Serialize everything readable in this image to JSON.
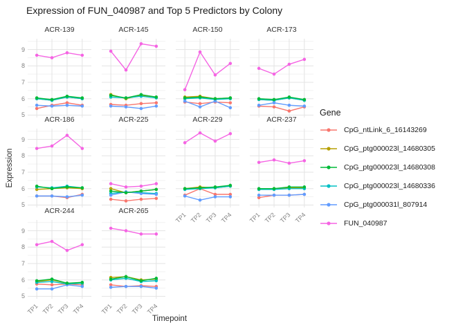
{
  "chart_data": {
    "type": "line",
    "title": "Expression of FUN_040987 and Top 5 Predictors by Colony",
    "xlabel": "Timepoint",
    "ylabel": "Expression",
    "x_categories": [
      "TP1",
      "TP2",
      "TP3",
      "TP4"
    ],
    "y_ticks": [
      5,
      6,
      7,
      8,
      9
    ],
    "ylim": [
      4.85,
      9.66
    ],
    "grid": true,
    "legend_title": "Gene",
    "legend_position": "right",
    "background_color": "#FFFFFF",
    "major_grid_color": "#E3E3E3",
    "minor_grid_color": "#F2F2F2",
    "series_meta": [
      {
        "name": "CpG_ntLink_6_16143269",
        "color": "#F8766D"
      },
      {
        "name": "CpG_ptg000023l_14680305",
        "color": "#B79F00"
      },
      {
        "name": "CpG_ptg000023l_14680308",
        "color": "#00BA38"
      },
      {
        "name": "CpG_ptg000023l_14680336",
        "color": "#00BFC4"
      },
      {
        "name": "CpG_ptg000031l_807914",
        "color": "#619CFF"
      },
      {
        "name": "FUN_040987",
        "color": "#F564E3"
      }
    ],
    "facets": [
      {
        "label": "ACR-139",
        "series": [
          [
            5.4,
            5.6,
            5.75,
            5.6
          ],
          [
            6.0,
            5.9,
            6.1,
            6.0
          ],
          [
            6.05,
            5.95,
            6.15,
            6.05
          ],
          [
            6.0,
            5.9,
            6.1,
            6.0
          ],
          [
            5.6,
            5.55,
            5.6,
            5.55
          ],
          [
            8.65,
            8.5,
            8.8,
            8.65
          ]
        ]
      },
      {
        "label": "ACR-145",
        "series": [
          [
            5.65,
            5.6,
            5.7,
            5.75
          ],
          [
            6.25,
            6.0,
            6.2,
            6.1
          ],
          [
            6.2,
            6.05,
            6.25,
            6.1
          ],
          [
            6.1,
            6.05,
            6.15,
            6.05
          ],
          [
            5.55,
            5.5,
            5.4,
            5.55
          ],
          [
            8.9,
            7.75,
            9.35,
            9.2
          ]
        ]
      },
      {
        "label": "ACR-150",
        "series": [
          [
            5.8,
            5.7,
            5.8,
            5.75
          ],
          [
            6.1,
            6.15,
            6.0,
            6.05
          ],
          [
            6.05,
            6.1,
            6.0,
            6.05
          ],
          [
            6.0,
            6.05,
            5.95,
            6.0
          ],
          [
            5.85,
            5.5,
            5.85,
            5.45
          ],
          [
            6.55,
            8.85,
            7.45,
            8.15
          ]
        ]
      },
      {
        "label": "ACR-173",
        "series": [
          [
            5.55,
            5.5,
            5.25,
            5.5
          ],
          [
            5.95,
            5.9,
            6.05,
            5.9
          ],
          [
            6.0,
            5.95,
            6.1,
            5.95
          ],
          [
            5.95,
            5.9,
            6.05,
            5.9
          ],
          [
            5.6,
            5.75,
            5.6,
            5.55
          ],
          [
            7.85,
            7.5,
            8.1,
            8.4
          ]
        ]
      },
      {
        "label": "ACR-186",
        "series": [
          [
            5.55,
            5.55,
            5.45,
            5.65
          ],
          [
            5.95,
            6.0,
            6.05,
            6.0
          ],
          [
            6.15,
            6.0,
            6.1,
            6.05
          ],
          [
            6.1,
            6.05,
            6.15,
            6.05
          ],
          [
            5.55,
            5.55,
            5.5,
            5.6
          ],
          [
            8.45,
            8.6,
            9.25,
            8.45
          ]
        ]
      },
      {
        "label": "ACR-225",
        "series": [
          [
            5.35,
            5.25,
            5.35,
            5.4
          ],
          [
            6.0,
            5.75,
            5.85,
            5.95
          ],
          [
            5.85,
            5.75,
            5.85,
            5.95
          ],
          [
            5.7,
            5.8,
            5.75,
            5.7
          ],
          [
            5.6,
            5.8,
            5.7,
            5.65
          ],
          [
            6.3,
            6.1,
            6.15,
            6.3
          ]
        ]
      },
      {
        "label": "ACR-229",
        "series": [
          [
            5.6,
            6.0,
            5.65,
            5.65
          ],
          [
            6.0,
            6.1,
            6.05,
            6.15
          ],
          [
            6.0,
            6.05,
            6.1,
            6.2
          ],
          [
            5.95,
            6.0,
            6.05,
            6.15
          ],
          [
            5.55,
            5.3,
            5.5,
            5.5
          ],
          [
            8.8,
            9.4,
            8.9,
            9.35
          ]
        ]
      },
      {
        "label": "ACR-237",
        "series": [
          [
            5.45,
            5.6,
            5.6,
            5.65
          ],
          [
            5.95,
            6.0,
            6.05,
            6.05
          ],
          [
            6.0,
            6.0,
            6.1,
            6.1
          ],
          [
            5.95,
            5.95,
            6.0,
            6.0
          ],
          [
            5.6,
            5.6,
            5.6,
            5.65
          ],
          [
            7.6,
            7.75,
            7.55,
            7.7
          ]
        ]
      },
      {
        "label": "ACR-244",
        "series": [
          [
            5.75,
            5.7,
            5.75,
            5.7
          ],
          [
            5.9,
            6.0,
            5.8,
            5.8
          ],
          [
            5.95,
            6.05,
            5.8,
            5.85
          ],
          [
            5.85,
            5.9,
            5.75,
            5.8
          ],
          [
            5.45,
            5.45,
            5.7,
            5.6
          ],
          [
            8.15,
            8.35,
            7.8,
            8.15
          ]
        ]
      },
      {
        "label": "ACR-265",
        "series": [
          [
            5.7,
            5.6,
            5.65,
            5.6
          ],
          [
            6.15,
            6.2,
            6.0,
            6.05
          ],
          [
            6.05,
            6.2,
            5.95,
            6.1
          ],
          [
            6.0,
            6.1,
            5.9,
            5.95
          ],
          [
            5.55,
            5.6,
            5.6,
            5.5
          ],
          [
            9.15,
            9.0,
            8.8,
            8.8
          ]
        ]
      }
    ]
  }
}
